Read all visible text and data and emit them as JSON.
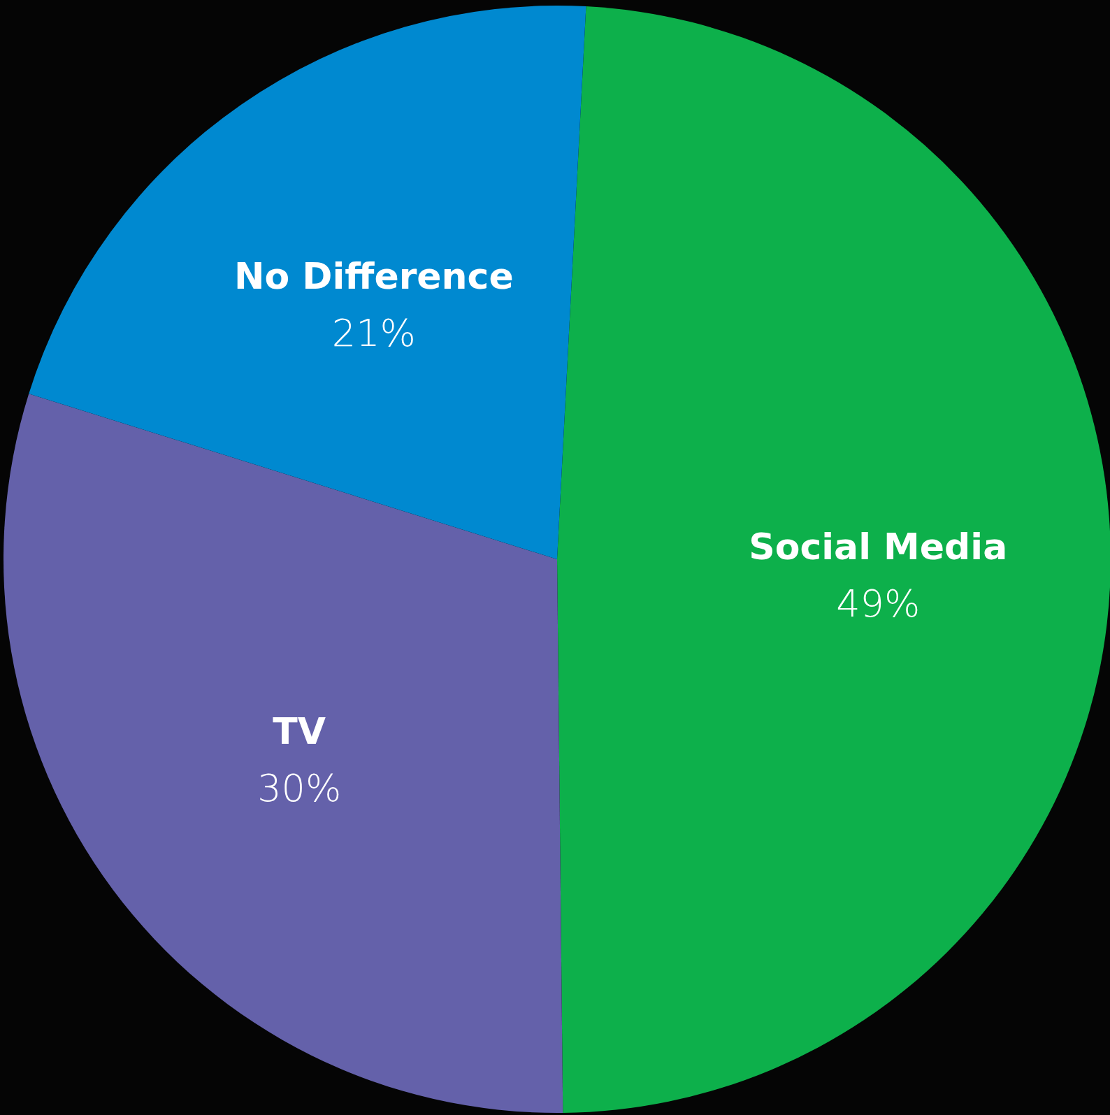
{
  "chart_data": {
    "type": "pie",
    "categories": [
      "Social Media",
      "TV",
      "No Difference"
    ],
    "values": [
      49,
      30,
      21
    ],
    "colors": [
      "#0db04b",
      "#6461aa",
      "#0089d0"
    ],
    "value_labels": [
      "49%",
      "30%",
      "21%"
    ],
    "legend": false
  }
}
